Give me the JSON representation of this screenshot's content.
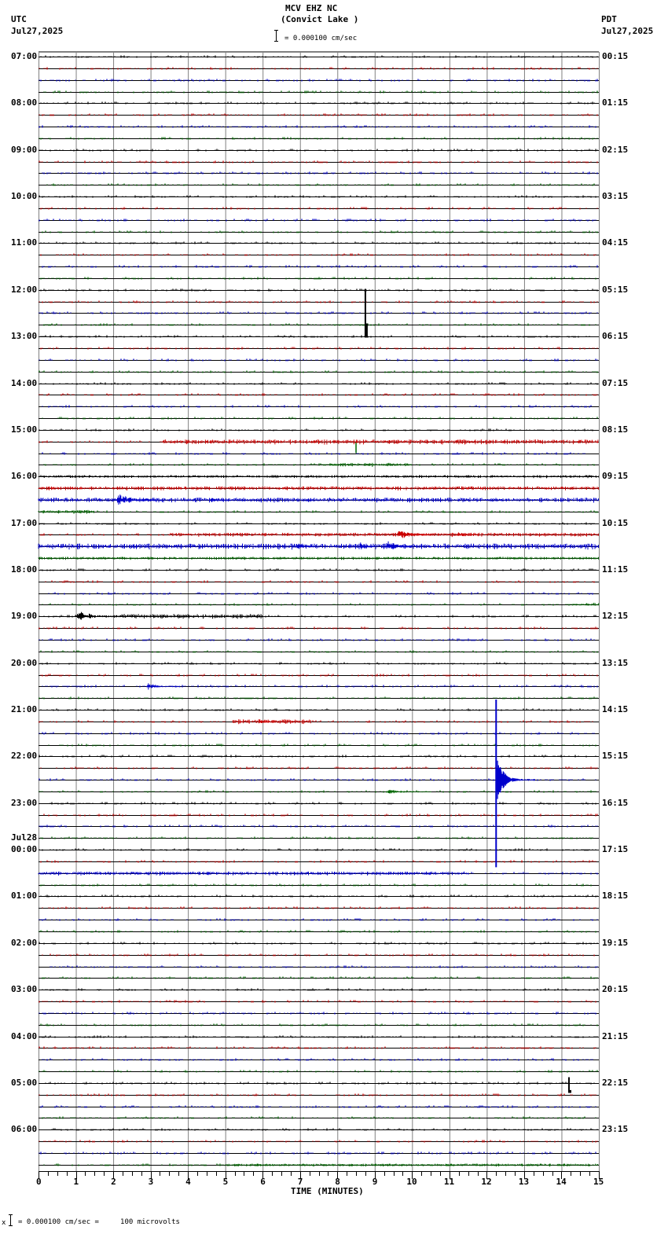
{
  "header": {
    "station": "MCV EHZ NC",
    "location": "(Convict Lake )",
    "left_tz": "UTC",
    "left_date": "Jul27,2025",
    "right_tz": "PDT",
    "right_date": "Jul27,2025",
    "scale_text": "= 0.000100 cm/sec"
  },
  "footer": {
    "xlabel": "TIME (MINUTES)",
    "scale_text": "= 0.000100 cm/sec =     100 microvolts",
    "scale_prefix": "x"
  },
  "colors": {
    "trace_cycle": [
      "#000000",
      "#cc0000",
      "#0000cc",
      "#006600"
    ],
    "grid": "#808080",
    "baseline": "#000000"
  },
  "chart_data": {
    "type": "line",
    "title": "MCV EHZ NC (Convict Lake )",
    "xlabel": "TIME (MINUTES)",
    "ylabel": "",
    "xlim": [
      0,
      15
    ],
    "x_ticks": [
      0,
      1,
      2,
      3,
      4,
      5,
      6,
      7,
      8,
      9,
      10,
      11,
      12,
      13,
      14,
      15
    ],
    "rows": 96,
    "minutes_per_row": 15,
    "left_labels": [
      {
        "row": 0,
        "text": "07:00"
      },
      {
        "row": 4,
        "text": "08:00"
      },
      {
        "row": 8,
        "text": "09:00"
      },
      {
        "row": 12,
        "text": "10:00"
      },
      {
        "row": 16,
        "text": "11:00"
      },
      {
        "row": 20,
        "text": "12:00"
      },
      {
        "row": 24,
        "text": "13:00"
      },
      {
        "row": 28,
        "text": "14:00"
      },
      {
        "row": 32,
        "text": "15:00"
      },
      {
        "row": 36,
        "text": "16:00"
      },
      {
        "row": 40,
        "text": "17:00"
      },
      {
        "row": 44,
        "text": "18:00"
      },
      {
        "row": 48,
        "text": "19:00"
      },
      {
        "row": 52,
        "text": "20:00"
      },
      {
        "row": 56,
        "text": "21:00"
      },
      {
        "row": 60,
        "text": "22:00"
      },
      {
        "row": 64,
        "text": "23:00"
      },
      {
        "row": 68,
        "text": "00:00",
        "date": "Jul28"
      },
      {
        "row": 72,
        "text": "01:00"
      },
      {
        "row": 76,
        "text": "02:00"
      },
      {
        "row": 80,
        "text": "03:00"
      },
      {
        "row": 84,
        "text": "04:00"
      },
      {
        "row": 88,
        "text": "05:00"
      },
      {
        "row": 92,
        "text": "06:00"
      }
    ],
    "right_labels": [
      {
        "row": 0,
        "text": "00:15"
      },
      {
        "row": 4,
        "text": "01:15"
      },
      {
        "row": 8,
        "text": "02:15"
      },
      {
        "row": 12,
        "text": "03:15"
      },
      {
        "row": 16,
        "text": "04:15"
      },
      {
        "row": 20,
        "text": "05:15"
      },
      {
        "row": 24,
        "text": "06:15"
      },
      {
        "row": 28,
        "text": "07:15"
      },
      {
        "row": 32,
        "text": "08:15"
      },
      {
        "row": 36,
        "text": "09:15"
      },
      {
        "row": 40,
        "text": "10:15"
      },
      {
        "row": 44,
        "text": "11:15"
      },
      {
        "row": 48,
        "text": "12:15"
      },
      {
        "row": 52,
        "text": "13:15"
      },
      {
        "row": 56,
        "text": "14:15"
      },
      {
        "row": 60,
        "text": "15:15"
      },
      {
        "row": 64,
        "text": "16:15"
      },
      {
        "row": 68,
        "text": "17:15"
      },
      {
        "row": 72,
        "text": "18:15"
      },
      {
        "row": 76,
        "text": "19:15"
      },
      {
        "row": 80,
        "text": "20:15"
      },
      {
        "row": 84,
        "text": "21:15"
      },
      {
        "row": 88,
        "text": "22:15"
      },
      {
        "row": 92,
        "text": "23:15"
      }
    ],
    "events": [
      {
        "row": 20,
        "minute": 8.75,
        "amp_up": 2,
        "amp_down": 60,
        "kind": "spike",
        "color": "#000000"
      },
      {
        "row": 33,
        "minute": 8.5,
        "amp_up": 2,
        "amp_down": 0,
        "kind": "step",
        "color": "#006600",
        "up": 14
      },
      {
        "row": 33,
        "start": 3.3,
        "end": 15,
        "amp": 2.5,
        "kind": "noise"
      },
      {
        "row": 35,
        "start": 7.8,
        "end": 10,
        "amp": 2,
        "kind": "noise"
      },
      {
        "row": 36,
        "start": 0,
        "end": 15,
        "amp": 1.5,
        "kind": "noise"
      },
      {
        "row": 37,
        "start": 0,
        "end": 15,
        "amp": 2,
        "kind": "noise"
      },
      {
        "row": 38,
        "start": 0,
        "end": 15,
        "amp": 2.5,
        "kind": "noise"
      },
      {
        "row": 38,
        "start": 2.1,
        "end": 3.2,
        "amp": 8,
        "kind": "burst"
      },
      {
        "row": 38,
        "start": 4.6,
        "end": 5.1,
        "amp": 4,
        "kind": "burst"
      },
      {
        "row": 39,
        "start": 0,
        "end": 1.5,
        "amp": 2,
        "kind": "noise"
      },
      {
        "row": 41,
        "start": 3.5,
        "end": 15,
        "amp": 2,
        "kind": "noise"
      },
      {
        "row": 41,
        "start": 9.6,
        "end": 10.5,
        "amp": 6,
        "kind": "burst"
      },
      {
        "row": 41,
        "start": 11.2,
        "end": 11.8,
        "amp": 4,
        "kind": "burst"
      },
      {
        "row": 42,
        "start": 0,
        "end": 15,
        "amp": 3,
        "kind": "noise"
      },
      {
        "row": 42,
        "start": 6.9,
        "end": 7.4,
        "amp": 6,
        "kind": "burst"
      },
      {
        "row": 42,
        "start": 8.6,
        "end": 9.0,
        "amp": 6,
        "kind": "burst"
      },
      {
        "row": 42,
        "start": 9.3,
        "end": 10.0,
        "amp": 8,
        "kind": "burst"
      },
      {
        "row": 43,
        "start": 0,
        "end": 15,
        "amp": 1.5,
        "kind": "noise"
      },
      {
        "row": 47,
        "start": 14.3,
        "end": 15,
        "amp": 2,
        "kind": "noise"
      },
      {
        "row": 48,
        "start": 1.0,
        "end": 2.2,
        "amp": 7,
        "kind": "burst"
      },
      {
        "row": 48,
        "start": 2.2,
        "end": 6,
        "amp": 2.5,
        "kind": "noise"
      },
      {
        "row": 54,
        "start": 2.9,
        "end": 3.8,
        "amp": 4,
        "kind": "burst"
      },
      {
        "row": 57,
        "start": 5.2,
        "end": 7.3,
        "amp": 2.5,
        "kind": "noise"
      },
      {
        "row": 57,
        "start": 5.9,
        "end": 6.2,
        "amp": 4,
        "kind": "burst"
      },
      {
        "row": 56,
        "minute": 12.25,
        "kind": "quake",
        "color": "#0000cc"
      },
      {
        "row": 62,
        "start": 12.25,
        "end": 13.3,
        "amp": 6,
        "kind": "burst"
      },
      {
        "row": 63,
        "start": 9.3,
        "end": 10.5,
        "amp": 3,
        "kind": "burst"
      },
      {
        "row": 70,
        "start": 0,
        "end": 11.5,
        "amp": 2,
        "kind": "noise"
      },
      {
        "row": 88,
        "minute": 14.2,
        "amp_up": 8,
        "amp_down": 12,
        "kind": "spike",
        "color": "#000000"
      },
      {
        "row": 95,
        "start": 5,
        "end": 15,
        "amp": 1.5,
        "kind": "noise"
      }
    ]
  }
}
